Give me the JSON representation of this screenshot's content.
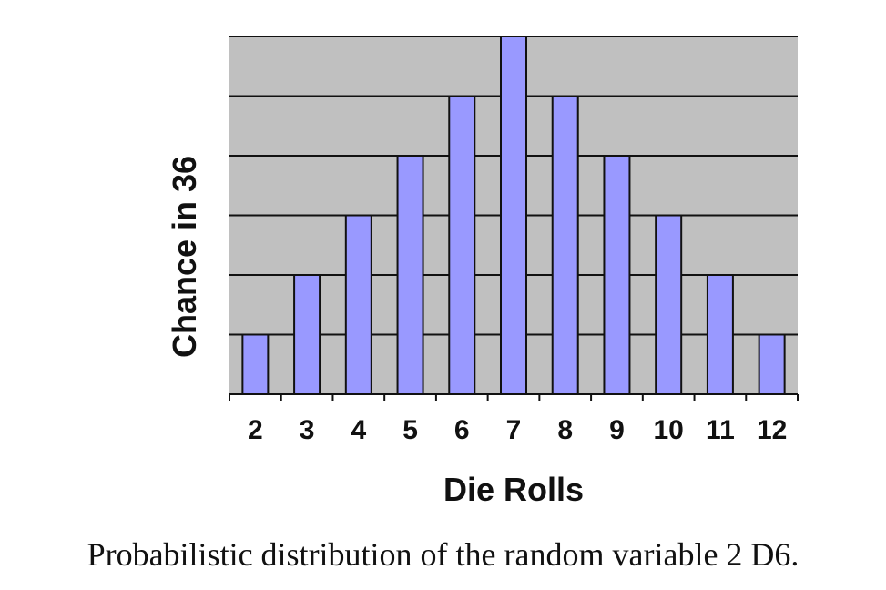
{
  "chart_data": {
    "type": "bar",
    "categories": [
      "2",
      "3",
      "4",
      "5",
      "6",
      "7",
      "8",
      "9",
      "10",
      "11",
      "12"
    ],
    "values": [
      1,
      2,
      3,
      4,
      5,
      6,
      5,
      4,
      3,
      2,
      1
    ],
    "xlabel": "Die Rolls",
    "ylabel": "Chance in 36",
    "ylim": [
      0,
      6
    ],
    "grid": true,
    "bar_color": "#9999ff",
    "plot_background": "#c0c0c0"
  },
  "caption": "Probabilistic distribution of the random variable 2 D6."
}
